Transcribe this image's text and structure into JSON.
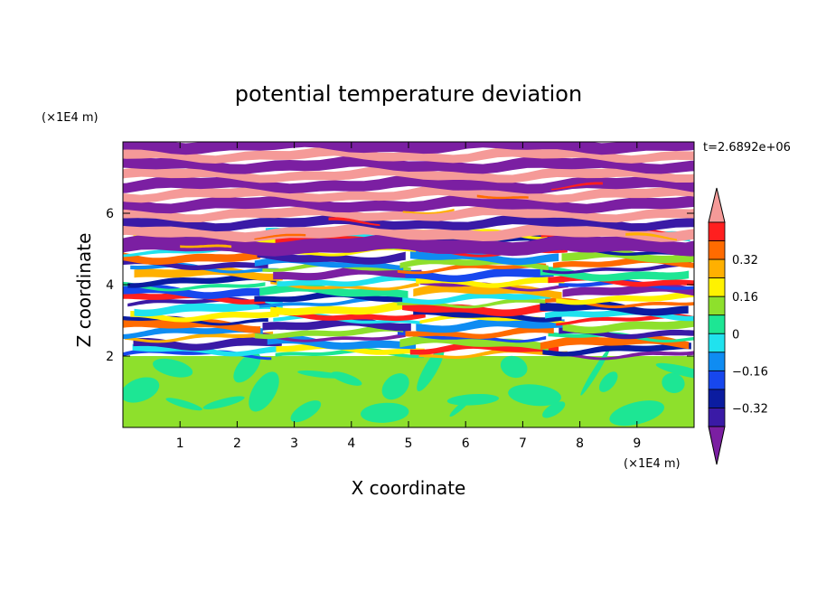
{
  "chart_data": {
    "type": "heatmap",
    "title": "potential temperature deviation",
    "xlabel": "X coordinate",
    "ylabel": "Z coordinate",
    "x_unit": "(×1E4 m)",
    "y_unit": "(×1E4 m)",
    "time_label": "t=2.6892e+06",
    "xlim": [
      0,
      10
    ],
    "ylim": [
      0,
      8
    ],
    "x_ticks": [
      "1",
      "2",
      "3",
      "4",
      "5",
      "6",
      "7",
      "8",
      "9"
    ],
    "y_ticks": [
      "2",
      "4",
      "6"
    ],
    "colorbar": {
      "levels": [
        -0.48,
        -0.4,
        -0.32,
        -0.24,
        -0.16,
        -0.08,
        0,
        0.08,
        0.16,
        0.24,
        0.32,
        0.4,
        0.48
      ],
      "colors": [
        "#7b1fa2",
        "#3a1aa6",
        "#0b1ca0",
        "#1747ee",
        "#0f8cf2",
        "#20e2ee",
        "#1de694",
        "#8ee02c",
        "#fff200",
        "#ffb000",
        "#ff6b00",
        "#ff1f1f",
        "#f59a98"
      ],
      "tick_labels": [
        "0.32",
        "0.16",
        "0",
        "−0.16",
        "−0.32"
      ],
      "extend": "both"
    }
  }
}
